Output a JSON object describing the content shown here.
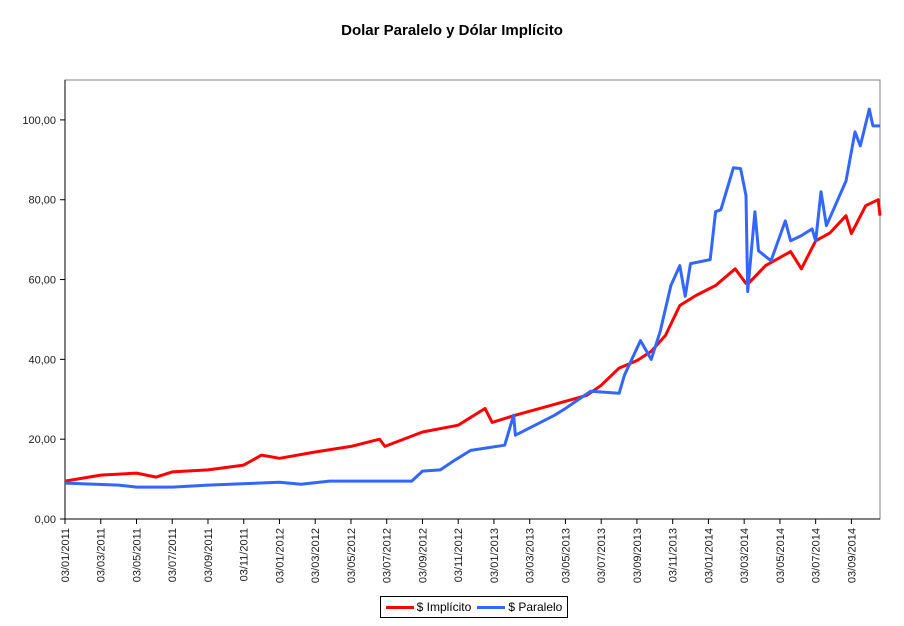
{
  "chart_data": {
    "type": "line",
    "title": "Dolar Paralelo y Dólar Implícito",
    "xlabel": "",
    "ylabel": "",
    "x_unit": "months since 03/01/2011",
    "xlim": [
      0,
      45.6
    ],
    "ylim": [
      0,
      110
    ],
    "yticks": [
      "0,00",
      "20,00",
      "40,00",
      "60,00",
      "80,00",
      "100,00"
    ],
    "ytick_values": [
      0,
      20,
      40,
      60,
      80,
      100
    ],
    "xticks": [
      "03/01/2011",
      "03/03/2011",
      "03/05/2011",
      "03/07/2011",
      "03/09/2011",
      "03/11/2011",
      "03/01/2012",
      "03/03/2012",
      "03/05/2012",
      "03/07/2012",
      "03/09/2012",
      "03/11/2012",
      "03/01/2013",
      "03/03/2013",
      "03/05/2013",
      "03/07/2013",
      "03/09/2013",
      "03/11/2013",
      "03/01/2014",
      "03/03/2014",
      "03/05/2014",
      "03/07/2014",
      "03/09/2014"
    ],
    "grid": false,
    "legend": "bottom",
    "series": [
      {
        "name": "$ Implícito",
        "color": "#ff0000",
        "x": [
          0,
          2,
          4,
          5.1,
          6,
          8,
          10,
          11,
          12,
          14,
          16,
          17.6,
          17.9,
          20,
          22,
          23.5,
          23.9,
          25.2,
          27.2,
          29.2,
          30,
          31,
          32,
          32.8,
          33.6,
          34.4,
          35.3,
          36.4,
          37.5,
          38.1,
          38.3,
          39.2,
          40.6,
          41.2,
          42,
          42.8,
          43.7,
          44,
          44.8,
          45.5,
          45.6
        ],
        "y": [
          9.5,
          11,
          11.5,
          10.5,
          11.8,
          12.3,
          13.5,
          16,
          15.2,
          16.8,
          18.2,
          20,
          18.2,
          21.8,
          23.5,
          27.7,
          24.2,
          26,
          28.5,
          31,
          33.5,
          37.8,
          39.7,
          42,
          46,
          53.5,
          56,
          58.5,
          62.7,
          59,
          59.3,
          63.5,
          67,
          62.7,
          69.7,
          71.7,
          76,
          71.5,
          78.5,
          80,
          76
        ]
      },
      {
        "name": "$ Paralelo",
        "color": "#3366ff",
        "x": [
          0,
          3,
          4,
          6,
          8,
          12,
          13.2,
          14.8,
          18.8,
          19.4,
          20,
          21,
          21.8,
          22.7,
          24.6,
          25.1,
          25.2,
          27.4,
          28,
          29.4,
          31,
          31.3,
          32.2,
          32.8,
          33.3,
          33.9,
          34.4,
          34.7,
          35,
          36.1,
          36.4,
          36.7,
          37.4,
          37.8,
          38.1,
          38.2,
          38.6,
          38.8,
          39.5,
          40.3,
          40.6,
          41.2,
          41.8,
          42,
          42.3,
          42.6,
          43.7,
          44.2,
          44.5,
          45,
          45.2,
          45.6
        ],
        "y": [
          9,
          8.5,
          8,
          8,
          8.5,
          9.2,
          8.7,
          9.5,
          9.5,
          9.5,
          12,
          12.3,
          14.7,
          17.2,
          18.5,
          26,
          21,
          26,
          27.7,
          32,
          31.5,
          36,
          44.7,
          40,
          47,
          58.5,
          63.5,
          55.8,
          64,
          65,
          77,
          77.5,
          88,
          87.8,
          81,
          57,
          77,
          67.2,
          64.7,
          74.7,
          69.7,
          71,
          72.7,
          69.7,
          82,
          73.5,
          84.7,
          97,
          93.5,
          102.7,
          98.5,
          98.5
        ]
      }
    ]
  }
}
